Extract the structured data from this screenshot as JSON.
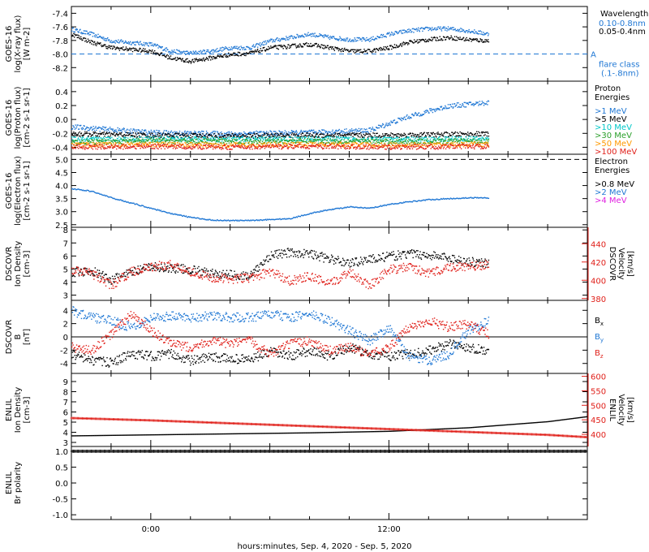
{
  "chart_data": {
    "type": "scatter",
    "x_axis": {
      "label": "hours:minutes, Sep.  4, 2020 - Sep.  5, 2020",
      "start_hours": -4,
      "end_hours": 22,
      "tick_labels": [
        "0:00",
        "12:00"
      ],
      "tick_values": [
        0,
        12
      ],
      "minor_tick_hours": 2
    },
    "panels": [
      {
        "id": "xray",
        "ylabel_lines": [
          "GOES-16",
          "log(X-ray flux)",
          "[W m-2]"
        ],
        "ylim": [
          -8.4,
          -7.3
        ],
        "yticks": [
          "-7.4",
          "-7.6",
          "-7.8",
          "-8.0",
          "-8.2"
        ],
        "ytick_values": [
          -7.4,
          -7.6,
          -7.8,
          -8.0,
          -8.2
        ],
        "legend_title": "Wavelength",
        "series": [
          {
            "name": "0.10-0.8nm",
            "color": "#1f77d4",
            "x": [
              -4,
              -3,
              -2,
              0,
              1,
              2,
              3,
              4,
              5,
              6,
              7,
              8,
              9,
              10,
              11,
              12,
              13,
              14,
              15,
              16,
              17
            ],
            "y": [
              -7.63,
              -7.7,
              -7.8,
              -7.85,
              -7.95,
              -7.98,
              -7.95,
              -7.9,
              -7.9,
              -7.8,
              -7.75,
              -7.7,
              -7.75,
              -7.78,
              -7.78,
              -7.7,
              -7.65,
              -7.62,
              -7.62,
              -7.65,
              -7.7
            ]
          },
          {
            "name": "0.05-0.4nm",
            "color": "#000000",
            "x": [
              -4,
              -3,
              -2,
              0,
              1,
              2,
              3,
              4,
              5,
              6,
              7,
              8,
              9,
              10,
              11,
              12,
              13,
              14,
              15,
              16,
              17
            ],
            "y": [
              -7.7,
              -7.82,
              -7.9,
              -7.95,
              -8.05,
              -8.1,
              -8.05,
              -8.0,
              -7.98,
              -7.9,
              -7.88,
              -7.85,
              -7.9,
              -7.95,
              -7.95,
              -7.9,
              -7.82,
              -7.78,
              -7.75,
              -7.78,
              -7.8
            ]
          }
        ],
        "annotation": {
          "lines": [
            "flare class",
            "(.1-.8nm)"
          ],
          "letter": "A",
          "value": -8.0
        }
      },
      {
        "id": "proton",
        "ylabel_lines": [
          "GOES-16",
          "log(Proton flux)",
          "[cm-2 s-1 sr-1]"
        ],
        "ylim": [
          -0.5,
          0.55
        ],
        "yticks": [
          "0.4",
          "0.2",
          "0.0",
          "-0.2",
          "-0.4"
        ],
        "ytick_values": [
          0.4,
          0.2,
          0.0,
          -0.2,
          -0.4
        ],
        "legend_title": "Proton Energies",
        "series": [
          {
            "name": ">1 MeV",
            "color": "#1f77d4",
            "x": [
              -4,
              0,
              4,
              8,
              11,
              13,
              15,
              17
            ],
            "y": [
              -0.1,
              -0.18,
              -0.2,
              -0.18,
              -0.15,
              0.05,
              0.2,
              0.25
            ]
          },
          {
            "name": ">5 MeV",
            "color": "#000000",
            "x": [
              -4,
              0,
              4,
              8,
              12,
              17
            ],
            "y": [
              -0.2,
              -0.22,
              -0.23,
              -0.22,
              -0.22,
              -0.2
            ]
          },
          {
            "name": ">10 MeV",
            "color": "#00c8c8",
            "x": [
              -4,
              0,
              4,
              8,
              12,
              17
            ],
            "y": [
              -0.28,
              -0.27,
              -0.28,
              -0.27,
              -0.28,
              -0.27
            ]
          },
          {
            "name": ">30 MeV",
            "color": "#2ca02c",
            "x": [
              -4,
              0,
              4,
              8,
              12,
              17
            ],
            "y": [
              -0.32,
              -0.3,
              -0.31,
              -0.3,
              -0.31,
              -0.3
            ]
          },
          {
            "name": ">50 MeV",
            "color": "#ff9900",
            "x": [
              -4,
              0,
              4,
              8,
              12,
              17
            ],
            "y": [
              -0.36,
              -0.35,
              -0.36,
              -0.35,
              -0.36,
              -0.35
            ]
          },
          {
            "name": ">100 MeV",
            "color": "#e0201a",
            "x": [
              -4,
              0,
              4,
              8,
              12,
              17
            ],
            "y": [
              -0.39,
              -0.38,
              -0.39,
              -0.38,
              -0.39,
              -0.38
            ]
          }
        ]
      },
      {
        "id": "electron",
        "ylabel_lines": [
          "GOES-16",
          "log(Electron flux)",
          "[cm-2 s-1 sr-1]"
        ],
        "ylim": [
          2.4,
          5.2
        ],
        "yticks": [
          "5.0",
          "4.5",
          "4.0",
          "3.5",
          "3.0",
          "2.5"
        ],
        "ytick_values": [
          5.0,
          4.5,
          4.0,
          3.5,
          3.0,
          2.5
        ],
        "legend_title": "Electron Energies",
        "series": [
          {
            "name": ">0.8 MeV",
            "color": "#000000",
            "x": [],
            "y": []
          },
          {
            "name": ">2 MeV",
            "color": "#1f77d4",
            "x": [
              -4,
              -3,
              -2,
              -1,
              0,
              1,
              2,
              3,
              4,
              5,
              6,
              7,
              8,
              9,
              10,
              11,
              12,
              13,
              14,
              15,
              16,
              17
            ],
            "y": [
              3.9,
              3.8,
              3.55,
              3.35,
              3.15,
              2.95,
              2.8,
              2.7,
              2.68,
              2.68,
              2.72,
              2.75,
              2.95,
              3.1,
              3.2,
              3.15,
              3.3,
              3.4,
              3.48,
              3.52,
              3.55,
              3.55
            ]
          },
          {
            "name": ">4 MeV",
            "color": "#e020e0",
            "x": [],
            "y": []
          }
        ],
        "threshold": 5.0
      },
      {
        "id": "dscovr_density",
        "ylabel_lines": [
          "DSCOVR",
          "Ion Density",
          "[cm-3]"
        ],
        "ylim": [
          2.6,
          8.2
        ],
        "yticks": [
          "8",
          "7",
          "6",
          "5",
          "4",
          "3"
        ],
        "ytick_values": [
          8,
          7,
          6,
          5,
          4,
          3
        ],
        "right_ylabel_lines": [
          "DSCOVR",
          "Velocity",
          "[km/s]"
        ],
        "right_ylim": [
          378,
          458
        ],
        "right_yticks": [
          "440",
          "420",
          "400",
          "380"
        ],
        "right_ytick_values": [
          440,
          420,
          400,
          380
        ],
        "series": [
          {
            "name": "Ion Density",
            "color": "#000000",
            "axis": "left",
            "x": [
              -4,
              -3,
              -2,
              -1,
              0,
              1,
              2,
              3,
              4,
              5,
              6,
              7,
              8,
              9,
              10,
              11,
              12,
              13,
              14,
              15,
              16,
              17
            ],
            "y": [
              4.8,
              4.9,
              4.2,
              4.8,
              5.2,
              5.1,
              5.0,
              4.7,
              4.6,
              4.5,
              6.1,
              6.3,
              6.2,
              5.8,
              5.5,
              5.8,
              6.0,
              6.2,
              6.1,
              5.9,
              5.6,
              5.5
            ]
          },
          {
            "name": "Velocity",
            "color": "#e0201a",
            "axis": "right",
            "x": [
              -4,
              -3,
              -2,
              -1,
              0,
              1,
              2,
              3,
              4,
              5,
              6,
              7,
              8,
              9,
              10,
              11,
              12,
              13,
              14,
              15,
              16,
              17
            ],
            "y": [
              412,
              408,
              395,
              410,
              415,
              418,
              410,
              403,
              402,
              403,
              410,
              400,
              405,
              396,
              410,
              395,
              412,
              415,
              408,
              415,
              415,
              418
            ]
          }
        ]
      },
      {
        "id": "dscovr_b",
        "ylabel_lines": [
          "DSCOVR",
          "B",
          "[nT]"
        ],
        "ylim": [
          -5.5,
          5.5
        ],
        "yticks": [
          "4",
          "2",
          "0",
          "-2",
          "-4"
        ],
        "ytick_values": [
          4,
          2,
          0,
          -2,
          -4
        ],
        "series": [
          {
            "name": "Bx",
            "color": "#000000",
            "x": [
              -4,
              -3,
              -2,
              -1,
              0,
              1,
              2,
              3,
              4,
              5,
              6,
              7,
              8,
              9,
              10,
              11,
              12,
              13,
              14,
              15,
              16,
              17
            ],
            "y": [
              -2.5,
              -3.5,
              -3.8,
              -2.5,
              -2.8,
              -2.5,
              -3.5,
              -3.0,
              -3.2,
              -3.3,
              -2.2,
              -2.8,
              -2.0,
              -2.8,
              -1.5,
              -2.5,
              -2.8,
              -2.5,
              -2.0,
              -1.0,
              -1.5,
              -2.0
            ]
          },
          {
            "name": "By",
            "color": "#1f77d4",
            "x": [
              -4,
              -3,
              -2,
              -1,
              0,
              1,
              2,
              3,
              4,
              5,
              6,
              7,
              8,
              9,
              10,
              11,
              12,
              13,
              14,
              15,
              16,
              17
            ],
            "y": [
              4.0,
              3.0,
              2.5,
              1.5,
              3.0,
              3.2,
              3.0,
              3.2,
              3.0,
              3.0,
              3.5,
              3.0,
              3.5,
              2.5,
              1.0,
              -0.5,
              1.5,
              -3.0,
              -3.5,
              -2.5,
              1.0,
              2.5
            ]
          },
          {
            "name": "Bz",
            "color": "#e0201a",
            "x": [
              -4,
              -3,
              -2,
              -1,
              0,
              1,
              2,
              3,
              4,
              5,
              6,
              7,
              8,
              9,
              10,
              11,
              12,
              13,
              14,
              15,
              16,
              17
            ],
            "y": [
              -1.5,
              -2.0,
              0.5,
              3.5,
              1.0,
              -1.0,
              -1.5,
              -0.5,
              -1.0,
              -0.5,
              -2.5,
              -1.0,
              -0.5,
              -2.0,
              -1.5,
              -2.5,
              -1.5,
              1.5,
              2.5,
              1.5,
              2.0,
              0.5
            ]
          }
        ]
      },
      {
        "id": "enlil_density",
        "ylabel_lines": [
          "ENLIL",
          "Ion Density",
          "[cm-3]"
        ],
        "ylim": [
          2.6,
          9.8
        ],
        "yticks": [
          "9",
          "8",
          "7",
          "6",
          "5",
          "4",
          "3"
        ],
        "ytick_values": [
          9,
          8,
          7,
          6,
          5,
          4,
          3
        ],
        "right_ylabel_lines": [
          "ENLIL",
          "Velocity",
          "[km/s]"
        ],
        "right_ylim": [
          358,
          610
        ],
        "right_yticks": [
          "600",
          "550",
          "500",
          "450",
          "400"
        ],
        "right_ytick_values": [
          600,
          550,
          500,
          450,
          400
        ],
        "series": [
          {
            "name": "Ion Density",
            "color": "#000000",
            "axis": "left",
            "x": [
              -4,
              0,
              4,
              8,
              12,
              16,
              20,
              22
            ],
            "y": [
              3.7,
              3.8,
              3.9,
              4.0,
              4.15,
              4.5,
              5.1,
              5.6
            ]
          },
          {
            "name": "Velocity",
            "color": "#e0201a",
            "axis": "right",
            "x": [
              -4,
              0,
              4,
              8,
              12,
              16,
              20,
              22
            ],
            "y": [
              456,
              448,
              438,
              428,
              418,
              408,
              398,
              390
            ]
          }
        ]
      },
      {
        "id": "enlil_polarity",
        "ylabel_lines": [
          "ENLIL",
          "Br polarity"
        ],
        "ylim": [
          -1.15,
          1.15
        ],
        "yticks": [
          "1.0",
          "0.5",
          "0.0",
          "-0.5",
          "-1.0"
        ],
        "ytick_values": [
          1.0,
          0.5,
          0.0,
          -0.5,
          -1.0
        ],
        "series": [
          {
            "name": "Br polarity",
            "color": "#000000",
            "x": [
              -4,
              22
            ],
            "y": [
              1.0,
              1.0
            ]
          }
        ]
      }
    ]
  }
}
